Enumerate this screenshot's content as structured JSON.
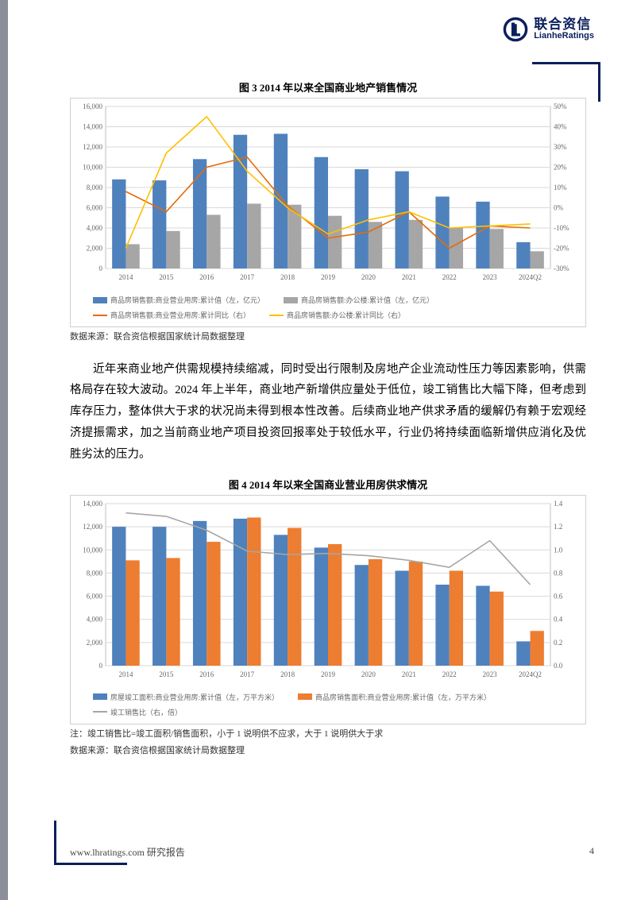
{
  "brand": {
    "cn": "联合资信",
    "en": "LianheRatings"
  },
  "footer": {
    "left": "www.lhratings.com   研究报告",
    "page": "4"
  },
  "chart3": {
    "title": "图 3   2014 年以来全国商业地产销售情况",
    "source": "数据来源：联合资信根据国家统计局数据整理",
    "type": "bar+line",
    "background_color": "#ffffff",
    "grid_color": "#d9d9d9",
    "categories": [
      "2014",
      "2015",
      "2016",
      "2017",
      "2018",
      "2019",
      "2020",
      "2021",
      "2022",
      "2023",
      "2024Q2"
    ],
    "left_axis": {
      "min": 0,
      "max": 16000,
      "step": 2000,
      "label_fontsize": 9,
      "label_color": "#666666"
    },
    "right_axis": {
      "min": -30,
      "max": 50,
      "step": 10,
      "suffix": "%",
      "label_fontsize": 9,
      "label_color": "#666666"
    },
    "bars": [
      {
        "name": "商品房销售额:商业营业用房:累计值（左，亿元）",
        "color": "#4f81bd",
        "values": [
          8800,
          8700,
          10800,
          13200,
          13300,
          11000,
          9800,
          9600,
          7100,
          6600,
          2600
        ]
      },
      {
        "name": "商品房销售额:办公楼:累计值（左，亿元）",
        "color": "#a6a6a6",
        "values": [
          2400,
          3700,
          5300,
          6400,
          6300,
          5200,
          4600,
          4800,
          4000,
          3900,
          1700
        ]
      }
    ],
    "lines": [
      {
        "name": "商品房销售额:商业营业用房:累计同比（右）",
        "color": "#e46c0a",
        "values": [
          8,
          -2,
          20,
          25,
          1,
          -15,
          -12,
          -2,
          -20,
          -9,
          -10
        ]
      },
      {
        "name": "商品房销售额:办公楼:累计同比（右）",
        "color": "#ffc000",
        "values": [
          -20,
          27,
          45,
          18,
          0,
          -13,
          -6,
          -2,
          -10,
          -9,
          -8
        ]
      }
    ],
    "bar_width": 0.34,
    "line_width": 1.6,
    "font_family": "SimSun",
    "tick_fontsize": 9
  },
  "paragraph": "近年来商业地产供需规模持续缩减，同时受出行限制及房地产企业流动性压力等因素影响，供需格局存在较大波动。2024 年上半年，商业地产新增供应量处于低位，竣工销售比大幅下降，但考虑到库存压力，整体供大于求的状况尚未得到根本性改善。后续商业地产供求矛盾的缓解仍有赖于宏观经济提振需求，加之当前商业地产项目投资回报率处于较低水平，行业仍将持续面临新增供应消化及优胜劣汰的压力。",
  "chart4": {
    "title": "图 4   2014 年以来全国商业营业用房供求情况",
    "note": "注：竣工销售比=竣工面积/销售面积，小于 1 说明供不应求，大于 1 说明供大于求",
    "source": "数据来源：联合资信根据国家统计局数据整理",
    "type": "bar+line",
    "background_color": "#ffffff",
    "grid_color": "#d9d9d9",
    "categories": [
      "2014",
      "2015",
      "2016",
      "2017",
      "2018",
      "2019",
      "2020",
      "2021",
      "2022",
      "2023",
      "2024Q2"
    ],
    "left_axis": {
      "min": 0,
      "max": 14000,
      "step": 2000,
      "label_fontsize": 9,
      "label_color": "#666666"
    },
    "right_axis": {
      "min": 0,
      "max": 1.4,
      "step": 0.2,
      "label_fontsize": 9,
      "label_color": "#666666"
    },
    "bars": [
      {
        "name": "房屋竣工面积:商业营业用房:累计值（左，万平方米）",
        "color": "#4f81bd",
        "values": [
          12000,
          12000,
          12500,
          12700,
          11300,
          10200,
          8700,
          8200,
          7000,
          6900,
          2100
        ]
      },
      {
        "name": "商品房销售面积:商业营业用房:累计值（左，万平方米）",
        "color": "#ed7d31",
        "values": [
          9100,
          9300,
          10700,
          12800,
          11900,
          10500,
          9200,
          9000,
          8200,
          6400,
          3000
        ]
      }
    ],
    "lines": [
      {
        "name": "竣工销售比（右，倍）",
        "color": "#a6a6a6",
        "values": [
          1.32,
          1.29,
          1.17,
          0.99,
          0.96,
          0.97,
          0.95,
          0.91,
          0.85,
          1.08,
          0.7
        ]
      }
    ],
    "bar_width": 0.34,
    "line_width": 1.6,
    "font_family": "SimSun",
    "tick_fontsize": 9
  }
}
